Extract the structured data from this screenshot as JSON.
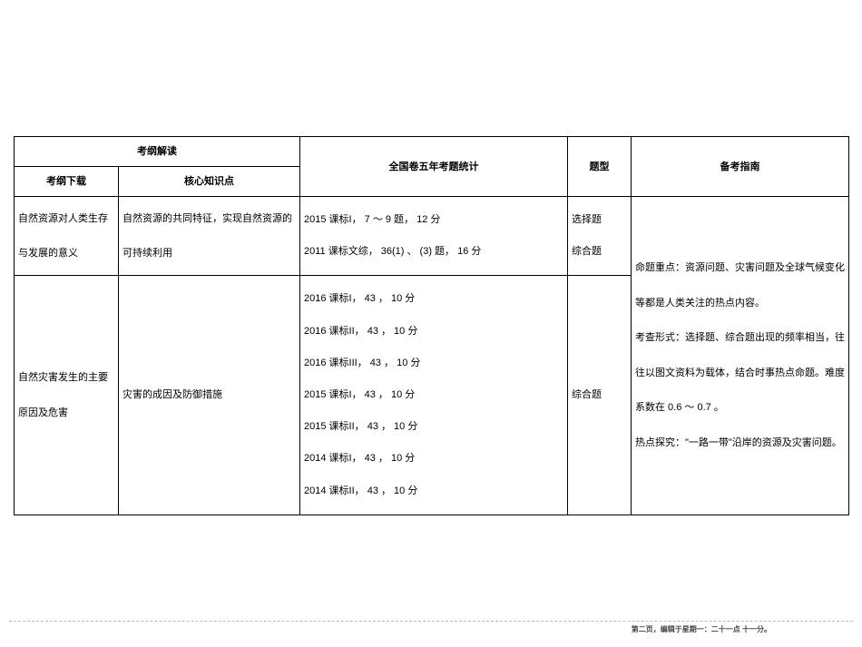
{
  "headers": {
    "col12_top": "考纲解读",
    "col1_sub": "考纲下载",
    "col2_sub": "核心知识点",
    "col3": "全国卷五年考题统计",
    "col4": "题型",
    "col5": "备考指南"
  },
  "rows": {
    "r1": {
      "c1": "自然资源对人类生存与发展的意义",
      "c2": "自然资源的共同特征，实现自然资源的可持续利用",
      "c3_line1": "2015 课标I， 7 ～ 9 题， 12 分",
      "c3_line2": "2011 课标文综， 36(1) 、 (3) 题， 16 分",
      "c4_line1": "选择题",
      "c4_line2": "综合题"
    },
    "r2": {
      "c1": "自然灾害发生的主要原因及危害",
      "c2": "灾害的成因及防御措施",
      "c3_l1": "2016 课标I， 43 ， 10 分",
      "c3_l2": "2016 课标II， 43 ， 10 分",
      "c3_l3": "2016 课标III， 43 ， 10 分",
      "c3_l4": "2015 课标I， 43 ， 10 分",
      "c3_l5": "2015 课标II， 43 ， 10 分",
      "c3_l6": "2014 课标I， 43 ， 10 分",
      "c3_l7": "2014 课标II， 43 ， 10 分",
      "c4": "综合题"
    },
    "guide": {
      "p1": "命题重点：资源问题、灾害问题及全球气候变化等都是人类关注的热点内容。",
      "p2": "考查形式：选择题、综合题出现的频率相当，往往以图文资料为载体，结合时事热点命题。难度系数在 0.6 ～ 0.7 。",
      "p3": "热点探究：\"一路一带\"沿岸的资源及灾害问题。"
    }
  },
  "footer": "第二页，编辑于星期一：二十一点 十一分。"
}
